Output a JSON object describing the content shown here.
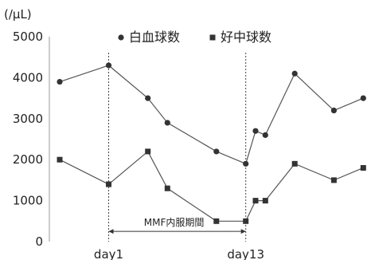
{
  "chart_data": {
    "type": "line",
    "title": "",
    "ylabel": "(/μL)",
    "xlabel": "",
    "ylim": [
      0,
      5000
    ],
    "yticks": [
      0,
      1000,
      2000,
      3000,
      4000,
      5000
    ],
    "grid": "none",
    "legend_position": "top-right",
    "x_tick_labels": [
      {
        "x": 2.5,
        "label": "day1"
      },
      {
        "x": 9.5,
        "label": "day13"
      }
    ],
    "series": [
      {
        "name": "白血球数",
        "marker": "circle",
        "color": "#333333",
        "points": [
          {
            "x": 0,
            "y": 3900
          },
          {
            "x": 2.5,
            "y": 4300
          },
          {
            "x": 4.5,
            "y": 3500
          },
          {
            "x": 5.5,
            "y": 2900
          },
          {
            "x": 8.0,
            "y": 2200
          },
          {
            "x": 9.5,
            "y": 1900
          },
          {
            "x": 10.0,
            "y": 2700
          },
          {
            "x": 10.5,
            "y": 2600
          },
          {
            "x": 12.0,
            "y": 4100
          },
          {
            "x": 14.0,
            "y": 3200
          },
          {
            "x": 15.5,
            "y": 3500
          }
        ]
      },
      {
        "name": "好中球数",
        "marker": "square",
        "color": "#333333",
        "points": [
          {
            "x": 0,
            "y": 2000
          },
          {
            "x": 2.5,
            "y": 1400
          },
          {
            "x": 4.5,
            "y": 2200
          },
          {
            "x": 5.5,
            "y": 1300
          },
          {
            "x": 8.0,
            "y": 500
          },
          {
            "x": 9.5,
            "y": 500
          },
          {
            "x": 10.0,
            "y": 1000
          },
          {
            "x": 10.5,
            "y": 1000
          },
          {
            "x": 12.0,
            "y": 1900
          },
          {
            "x": 14.0,
            "y": 1500
          },
          {
            "x": 15.5,
            "y": 1800
          }
        ]
      }
    ],
    "annotation": {
      "text": "MMF内服期間",
      "from_x": 2.5,
      "to_x": 9.5,
      "y": 250
    },
    "vlines": [
      2.5,
      9.5
    ]
  }
}
